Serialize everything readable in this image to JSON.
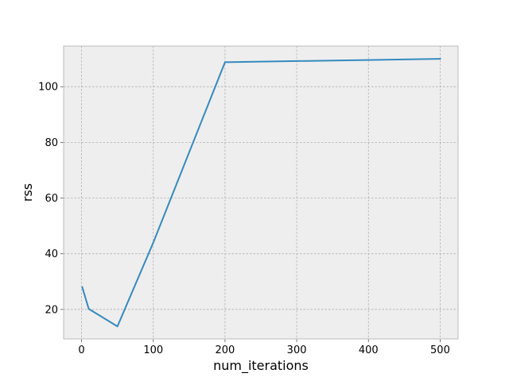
{
  "chart_data": {
    "type": "line",
    "xlabel": "num_iterations",
    "ylabel": "rss",
    "xlim": [
      -25,
      525
    ],
    "ylim": [
      9.4,
      114.6
    ],
    "xticks": [
      0,
      100,
      200,
      300,
      400,
      500
    ],
    "yticks": [
      20,
      40,
      60,
      80,
      100
    ],
    "grid": true,
    "series": [
      {
        "color": "#348ABD",
        "x": [
          1,
          10,
          50,
          100,
          200,
          500
        ],
        "y": [
          28.0,
          20.2,
          13.9,
          44.0,
          108.8,
          110.0
        ]
      }
    ]
  }
}
